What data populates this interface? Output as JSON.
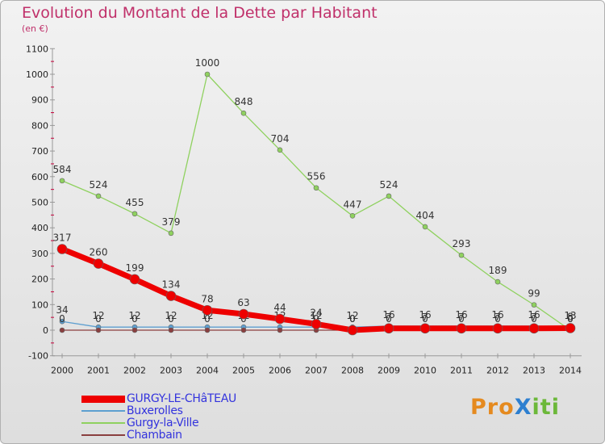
{
  "title": "Evolution du Montant de la Dette par Habitant",
  "subtitle": "(en €)",
  "logo": {
    "text": "ProXiti",
    "letters": [
      {
        "ch": "P",
        "color": "#e58a1f"
      },
      {
        "ch": "r",
        "color": "#e58a1f"
      },
      {
        "ch": "o",
        "color": "#e58a1f"
      },
      {
        "ch": "X",
        "color": "#2d7fd0"
      },
      {
        "ch": "i",
        "color": "#6cb83a"
      },
      {
        "ch": "t",
        "color": "#6cb83a"
      },
      {
        "ch": "i",
        "color": "#6cb83a"
      }
    ]
  },
  "chart_data": {
    "type": "line",
    "title": "Evolution du Montant de la Dette par Habitant",
    "subtitle": "(en €)",
    "x": [
      "2000",
      "2001",
      "2002",
      "2003",
      "2004",
      "2005",
      "2006",
      "2007",
      "2008",
      "2009",
      "2010",
      "2011",
      "2012",
      "2013",
      "2014"
    ],
    "ylim": [
      -100,
      1100
    ],
    "yticks": [
      -100,
      0,
      100,
      200,
      300,
      400,
      500,
      600,
      700,
      800,
      900,
      1000,
      1100
    ],
    "grid": false,
    "legend_position": "bottom-left",
    "series": [
      {
        "name": "Gurgy-la-Ville",
        "color": "#8fd15f",
        "width": 1.3,
        "marker_radius": 3,
        "values": [
          584,
          524,
          455,
          379,
          1000,
          848,
          704,
          556,
          447,
          524,
          404,
          293,
          189,
          99,
          0
        ],
        "labels": [
          "584",
          "524",
          "455",
          "379",
          "1000",
          "848",
          "704",
          "556",
          "447",
          "524",
          "404",
          "293",
          "189",
          "99",
          "0"
        ]
      },
      {
        "name": "Buxerolles",
        "color": "#5d9fd0",
        "width": 1.3,
        "marker_radius": 3,
        "values": [
          34,
          12,
          12,
          12,
          12,
          12,
          12,
          12,
          12,
          16,
          16,
          16,
          16,
          16,
          13
        ],
        "labels": [
          "34",
          "12",
          "12",
          "12",
          "12",
          "12",
          "12",
          "12",
          "12",
          "16",
          "16",
          "16",
          "16",
          "16",
          "13"
        ]
      },
      {
        "name": "Chambain",
        "color": "#8a3f3f",
        "width": 1.3,
        "marker_radius": 3,
        "values": [
          0,
          0,
          0,
          0,
          0,
          0,
          0,
          0,
          0,
          0,
          0,
          0,
          0,
          0,
          0
        ],
        "labels": [
          "0",
          "0",
          "0",
          "0",
          "0",
          "0",
          "0",
          "0",
          "0",
          "0",
          "0",
          "0",
          "0",
          "0",
          "0"
        ]
      },
      {
        "name": "GURGY-LE-CHâTEAU",
        "color": "#ee0000",
        "width": 7,
        "marker_radius": 6,
        "values": [
          317,
          260,
          199,
          134,
          78,
          63,
          44,
          24,
          0,
          7,
          7,
          7,
          7,
          7,
          8
        ],
        "labels": [
          "317",
          "260",
          "199",
          "134",
          "78",
          "63",
          "44",
          "24",
          "0",
          "7",
          "7",
          "7",
          "7",
          "7",
          "8"
        ]
      }
    ],
    "legend": [
      "GURGY-LE-CHâTEAU",
      "Buxerolles",
      "Gurgy-la-Ville",
      "Chambain"
    ]
  }
}
